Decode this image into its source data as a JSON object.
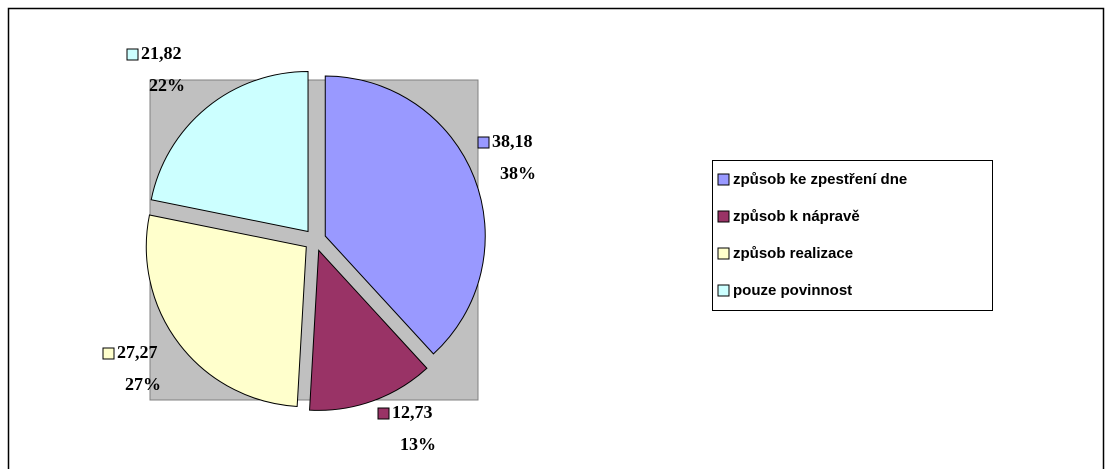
{
  "chart_data": {
    "type": "pie",
    "categories": [
      "způsob ke zpestření dne",
      "způsob k nápravě",
      "způsob realizace",
      "pouze povinnost"
    ],
    "values": [
      38.18,
      12.73,
      27.27,
      21.82
    ],
    "value_labels": [
      "38,18",
      "12,73",
      "27,27",
      "21,82"
    ],
    "percent_labels": [
      "38%",
      "13%",
      "27%",
      "22%"
    ],
    "colors": [
      "#9999ff",
      "#993366",
      "#ffffcc",
      "#ccffff"
    ],
    "legend": "right"
  }
}
